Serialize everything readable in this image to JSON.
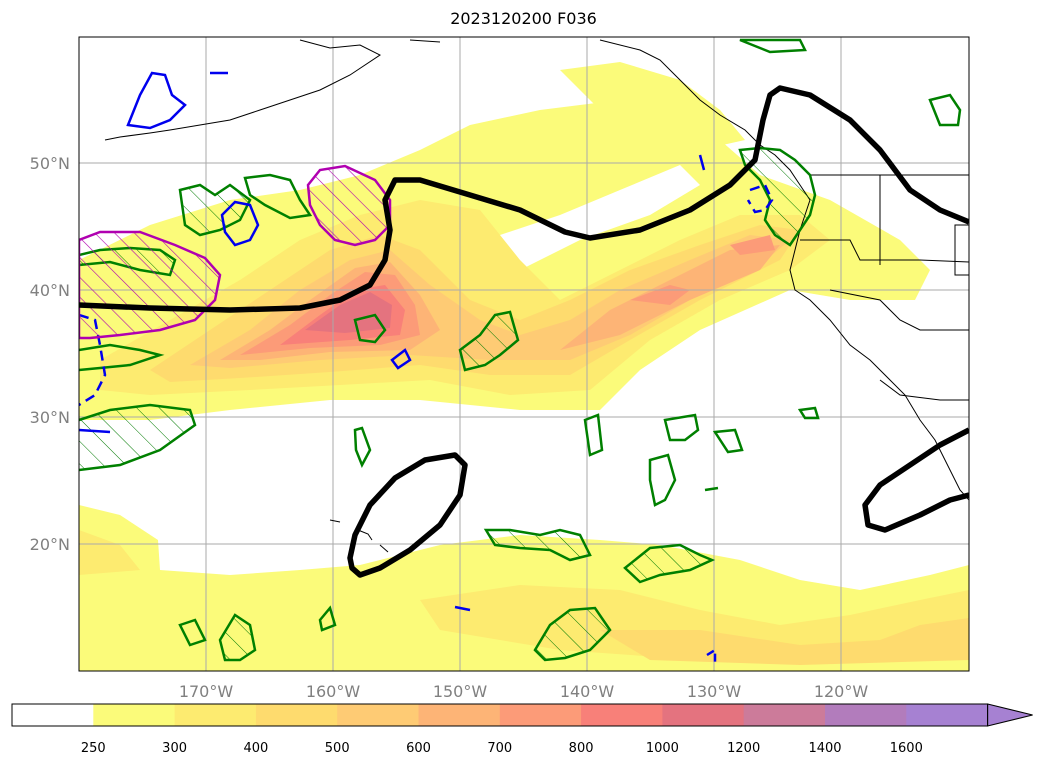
{
  "title": "2023120200 F036",
  "map": {
    "lat_labels": [
      "50°N",
      "40°N",
      "30°N",
      "20°N"
    ],
    "lon_labels": [
      "170°W",
      "160°W",
      "150°W",
      "140°W",
      "130°W",
      "120°W"
    ],
    "grid": true,
    "overlays": [
      "ivt-shading",
      "jet-contour-black",
      "green-contours",
      "blue-contours",
      "magenta-hatched"
    ]
  },
  "colorbar": {
    "levels": [
      "250",
      "300",
      "400",
      "500",
      "600",
      "700",
      "800",
      "1000",
      "1200",
      "1400",
      "1600"
    ],
    "colors": [
      "#ffffff",
      "#fbfb7a",
      "#fdeb70",
      "#fedb6e",
      "#fecb74",
      "#fdb476",
      "#fc9b78",
      "#f88079",
      "#e4737f",
      "#cc7b9a",
      "#b27cbc",
      "#a681d2"
    ],
    "extend": "max"
  }
}
